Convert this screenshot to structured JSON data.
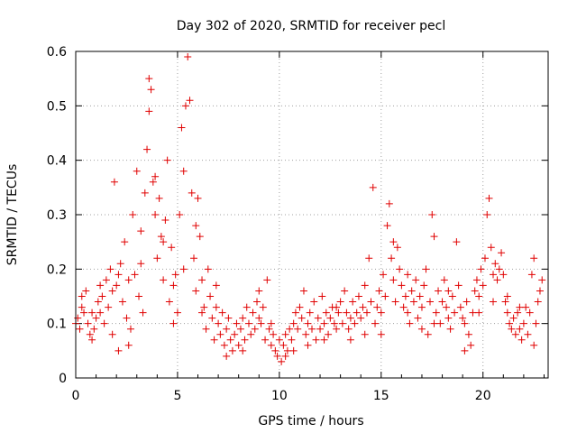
{
  "chart_data": {
    "type": "scatter",
    "title": "Day 302 of 2020, SRMTID for receiver pecl",
    "xlabel": "GPS time / hours",
    "ylabel": "SRMTID / TECUs",
    "xlim": [
      0,
      23.2
    ],
    "ylim": [
      0,
      0.6
    ],
    "xticks": [
      0,
      5,
      10,
      15,
      20
    ],
    "xtick_labels": [
      "0",
      "5",
      "10",
      "15",
      "20"
    ],
    "yticks": [
      0,
      0.1,
      0.2,
      0.3,
      0.4,
      0.5,
      0.6
    ],
    "ytick_labels": [
      "0",
      "0.1",
      "0.2",
      "0.3",
      "0.4",
      "0.5",
      "0.6"
    ],
    "grid": true,
    "marker": "plus",
    "color": "#e00000",
    "series": [
      {
        "name": "SRMTID",
        "points": [
          [
            0.0,
            0.1
          ],
          [
            0.1,
            0.11
          ],
          [
            0.2,
            0.09
          ],
          [
            0.3,
            0.13
          ],
          [
            0.4,
            0.12
          ],
          [
            0.5,
            0.16
          ],
          [
            0.6,
            0.1
          ],
          [
            0.7,
            0.08
          ],
          [
            0.8,
            0.12
          ],
          [
            0.9,
            0.09
          ],
          [
            1.0,
            0.11
          ],
          [
            1.1,
            0.14
          ],
          [
            1.2,
            0.12
          ],
          [
            1.3,
            0.15
          ],
          [
            1.4,
            0.1
          ],
          [
            1.5,
            0.18
          ],
          [
            1.6,
            0.13
          ],
          [
            1.7,
            0.2
          ],
          [
            1.8,
            0.16
          ],
          [
            1.9,
            0.36
          ],
          [
            2.0,
            0.17
          ],
          [
            2.1,
            0.05
          ],
          [
            2.2,
            0.21
          ],
          [
            2.3,
            0.14
          ],
          [
            2.4,
            0.25
          ],
          [
            2.5,
            0.11
          ],
          [
            2.6,
            0.18
          ],
          [
            2.7,
            0.09
          ],
          [
            2.8,
            0.3
          ],
          [
            2.9,
            0.19
          ],
          [
            3.0,
            0.38
          ],
          [
            3.1,
            0.15
          ],
          [
            3.2,
            0.27
          ],
          [
            3.3,
            0.12
          ],
          [
            3.4,
            0.34
          ],
          [
            3.5,
            0.42
          ],
          [
            3.6,
            0.55
          ],
          [
            3.6,
            0.49
          ],
          [
            3.7,
            0.53
          ],
          [
            3.8,
            0.36
          ],
          [
            3.9,
            0.3
          ],
          [
            4.0,
            0.22
          ],
          [
            4.1,
            0.33
          ],
          [
            4.2,
            0.26
          ],
          [
            4.3,
            0.18
          ],
          [
            4.4,
            0.29
          ],
          [
            4.5,
            0.4
          ],
          [
            4.6,
            0.14
          ],
          [
            4.7,
            0.24
          ],
          [
            4.8,
            0.1
          ],
          [
            4.9,
            0.19
          ],
          [
            5.0,
            0.12
          ],
          [
            5.1,
            0.3
          ],
          [
            5.2,
            0.46
          ],
          [
            5.3,
            0.38
          ],
          [
            5.4,
            0.5
          ],
          [
            5.5,
            0.59
          ],
          [
            5.6,
            0.51
          ],
          [
            5.7,
            0.34
          ],
          [
            5.8,
            0.22
          ],
          [
            5.9,
            0.16
          ],
          [
            6.0,
            0.33
          ],
          [
            6.1,
            0.26
          ],
          [
            6.2,
            0.18
          ],
          [
            6.3,
            0.13
          ],
          [
            6.4,
            0.09
          ],
          [
            6.5,
            0.2
          ],
          [
            6.6,
            0.15
          ],
          [
            6.7,
            0.11
          ],
          [
            6.8,
            0.07
          ],
          [
            6.9,
            0.13
          ],
          [
            7.0,
            0.1
          ],
          [
            7.1,
            0.08
          ],
          [
            7.2,
            0.12
          ],
          [
            7.3,
            0.06
          ],
          [
            7.4,
            0.09
          ],
          [
            7.5,
            0.11
          ],
          [
            7.6,
            0.07
          ],
          [
            7.7,
            0.05
          ],
          [
            7.8,
            0.08
          ],
          [
            7.9,
            0.1
          ],
          [
            8.0,
            0.06
          ],
          [
            8.1,
            0.09
          ],
          [
            8.2,
            0.11
          ],
          [
            8.3,
            0.07
          ],
          [
            8.4,
            0.13
          ],
          [
            8.5,
            0.1
          ],
          [
            8.6,
            0.08
          ],
          [
            8.7,
            0.12
          ],
          [
            8.8,
            0.09
          ],
          [
            8.9,
            0.14
          ],
          [
            9.0,
            0.11
          ],
          [
            9.1,
            0.1
          ],
          [
            9.2,
            0.13
          ],
          [
            9.3,
            0.07
          ],
          [
            9.4,
            0.18
          ],
          [
            9.5,
            0.09
          ],
          [
            9.6,
            0.06
          ],
          [
            9.7,
            0.08
          ],
          [
            9.8,
            0.05
          ],
          [
            9.9,
            0.04
          ],
          [
            10.0,
            0.07
          ],
          [
            10.1,
            0.03
          ],
          [
            10.2,
            0.06
          ],
          [
            10.3,
            0.08
          ],
          [
            10.4,
            0.05
          ],
          [
            10.5,
            0.09
          ],
          [
            10.6,
            0.07
          ],
          [
            10.7,
            0.1
          ],
          [
            10.8,
            0.12
          ],
          [
            10.9,
            0.09
          ],
          [
            11.0,
            0.13
          ],
          [
            11.1,
            0.11
          ],
          [
            11.2,
            0.16
          ],
          [
            11.3,
            0.08
          ],
          [
            11.4,
            0.1
          ],
          [
            11.5,
            0.12
          ],
          [
            11.6,
            0.09
          ],
          [
            11.7,
            0.14
          ],
          [
            11.8,
            0.07
          ],
          [
            11.9,
            0.11
          ],
          [
            12.0,
            0.09
          ],
          [
            12.1,
            0.15
          ],
          [
            12.2,
            0.1
          ],
          [
            12.3,
            0.12
          ],
          [
            12.4,
            0.08
          ],
          [
            12.5,
            0.11
          ],
          [
            12.6,
            0.13
          ],
          [
            12.7,
            0.1
          ],
          [
            12.8,
            0.09
          ],
          [
            12.9,
            0.12
          ],
          [
            13.0,
            0.14
          ],
          [
            13.1,
            0.1
          ],
          [
            13.2,
            0.16
          ],
          [
            13.3,
            0.12
          ],
          [
            13.4,
            0.09
          ],
          [
            13.5,
            0.11
          ],
          [
            13.6,
            0.14
          ],
          [
            13.7,
            0.1
          ],
          [
            13.8,
            0.12
          ],
          [
            13.9,
            0.15
          ],
          [
            14.0,
            0.11
          ],
          [
            14.1,
            0.13
          ],
          [
            14.2,
            0.17
          ],
          [
            14.3,
            0.12
          ],
          [
            14.4,
            0.22
          ],
          [
            14.5,
            0.14
          ],
          [
            14.6,
            0.35
          ],
          [
            14.7,
            0.1
          ],
          [
            14.8,
            0.13
          ],
          [
            14.9,
            0.16
          ],
          [
            15.0,
            0.12
          ],
          [
            15.1,
            0.19
          ],
          [
            15.2,
            0.15
          ],
          [
            15.3,
            0.28
          ],
          [
            15.4,
            0.32
          ],
          [
            15.5,
            0.22
          ],
          [
            15.6,
            0.18
          ],
          [
            15.7,
            0.14
          ],
          [
            15.8,
            0.24
          ],
          [
            15.9,
            0.2
          ],
          [
            16.0,
            0.17
          ],
          [
            16.1,
            0.13
          ],
          [
            16.2,
            0.15
          ],
          [
            16.3,
            0.12
          ],
          [
            16.4,
            0.1
          ],
          [
            16.5,
            0.16
          ],
          [
            16.6,
            0.14
          ],
          [
            16.7,
            0.18
          ],
          [
            16.8,
            0.11
          ],
          [
            16.9,
            0.15
          ],
          [
            17.0,
            0.13
          ],
          [
            17.1,
            0.17
          ],
          [
            17.2,
            0.2
          ],
          [
            17.3,
            0.08
          ],
          [
            17.4,
            0.14
          ],
          [
            17.5,
            0.3
          ],
          [
            17.6,
            0.26
          ],
          [
            17.7,
            0.12
          ],
          [
            17.8,
            0.16
          ],
          [
            17.9,
            0.1
          ],
          [
            18.0,
            0.14
          ],
          [
            18.1,
            0.18
          ],
          [
            18.2,
            0.13
          ],
          [
            18.3,
            0.11
          ],
          [
            18.4,
            0.09
          ],
          [
            18.5,
            0.15
          ],
          [
            18.6,
            0.12
          ],
          [
            18.7,
            0.25
          ],
          [
            18.8,
            0.17
          ],
          [
            18.9,
            0.13
          ],
          [
            19.0,
            0.11
          ],
          [
            19.1,
            0.1
          ],
          [
            19.2,
            0.14
          ],
          [
            19.3,
            0.08
          ],
          [
            19.4,
            0.06
          ],
          [
            19.5,
            0.12
          ],
          [
            19.6,
            0.16
          ],
          [
            19.7,
            0.18
          ],
          [
            19.8,
            0.15
          ],
          [
            19.9,
            0.2
          ],
          [
            20.0,
            0.17
          ],
          [
            20.1,
            0.22
          ],
          [
            20.2,
            0.3
          ],
          [
            20.3,
            0.33
          ],
          [
            20.4,
            0.24
          ],
          [
            20.5,
            0.19
          ],
          [
            20.6,
            0.21
          ],
          [
            20.7,
            0.18
          ],
          [
            20.8,
            0.2
          ],
          [
            20.9,
            0.23
          ],
          [
            21.0,
            0.19
          ],
          [
            21.1,
            0.14
          ],
          [
            21.2,
            0.12
          ],
          [
            21.3,
            0.1
          ],
          [
            21.4,
            0.09
          ],
          [
            21.5,
            0.11
          ],
          [
            21.6,
            0.08
          ],
          [
            21.7,
            0.12
          ],
          [
            21.8,
            0.09
          ],
          [
            21.9,
            0.07
          ],
          [
            22.0,
            0.1
          ],
          [
            22.1,
            0.13
          ],
          [
            22.2,
            0.08
          ],
          [
            22.3,
            0.12
          ],
          [
            22.4,
            0.19
          ],
          [
            22.5,
            0.22
          ],
          [
            22.6,
            0.1
          ],
          [
            22.7,
            0.14
          ],
          [
            22.8,
            0.16
          ],
          [
            0.3,
            0.15
          ],
          [
            0.8,
            0.07
          ],
          [
            1.2,
            0.17
          ],
          [
            1.8,
            0.08
          ],
          [
            2.1,
            0.19
          ],
          [
            2.6,
            0.06
          ],
          [
            3.2,
            0.21
          ],
          [
            3.9,
            0.37
          ],
          [
            4.3,
            0.25
          ],
          [
            4.8,
            0.17
          ],
          [
            5.3,
            0.2
          ],
          [
            5.9,
            0.28
          ],
          [
            6.2,
            0.12
          ],
          [
            6.9,
            0.17
          ],
          [
            7.4,
            0.04
          ],
          [
            8.2,
            0.05
          ],
          [
            9.0,
            0.16
          ],
          [
            9.6,
            0.1
          ],
          [
            10.3,
            0.04
          ],
          [
            10.7,
            0.05
          ],
          [
            11.4,
            0.06
          ],
          [
            12.2,
            0.07
          ],
          [
            12.8,
            0.13
          ],
          [
            13.5,
            0.07
          ],
          [
            14.2,
            0.08
          ],
          [
            15.0,
            0.08
          ],
          [
            15.6,
            0.25
          ],
          [
            16.3,
            0.19
          ],
          [
            17.0,
            0.09
          ],
          [
            17.6,
            0.1
          ],
          [
            18.3,
            0.16
          ],
          [
            19.1,
            0.05
          ],
          [
            19.8,
            0.12
          ],
          [
            20.5,
            0.14
          ],
          [
            21.2,
            0.15
          ],
          [
            21.8,
            0.13
          ],
          [
            22.5,
            0.06
          ],
          [
            22.9,
            0.18
          ]
        ]
      }
    ]
  }
}
